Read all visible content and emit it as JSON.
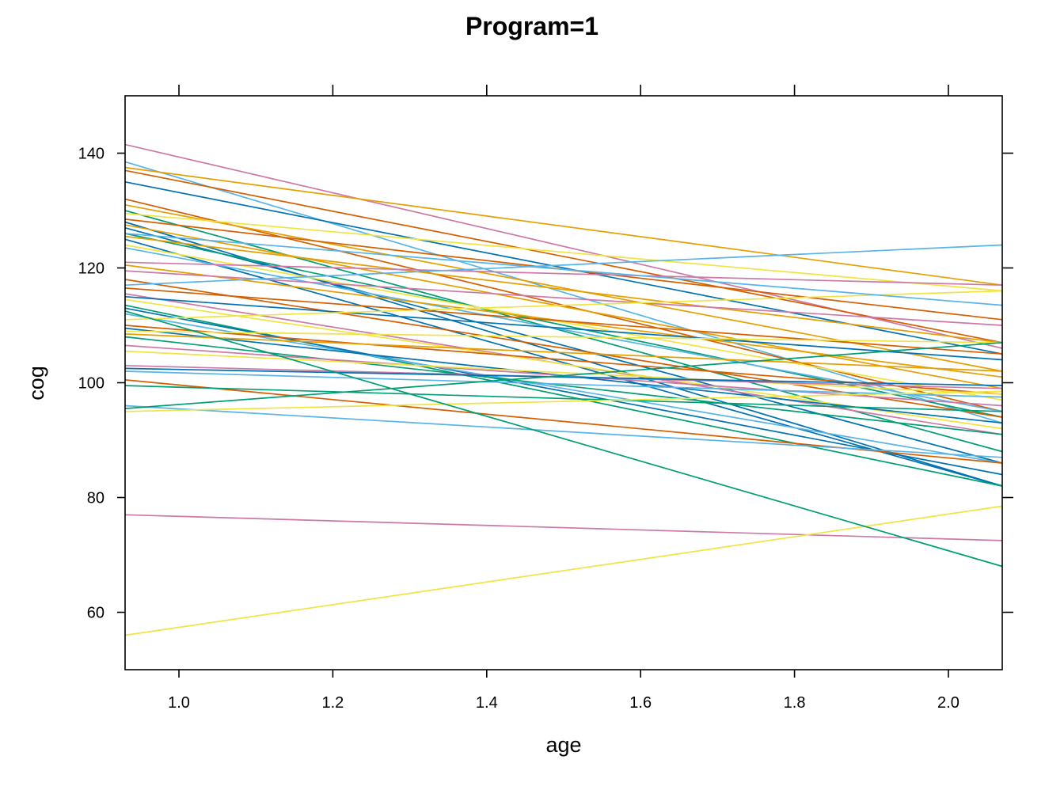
{
  "chart_data": {
    "type": "line",
    "title": "Program=1",
    "xlabel": "age",
    "ylabel": "cog",
    "xlim": [
      0.93,
      2.07
    ],
    "ylim": [
      50,
      150
    ],
    "xticks": [
      1.0,
      1.2,
      1.4,
      1.6,
      1.8,
      2.0
    ],
    "xtick_labels": [
      "1.0",
      "1.2",
      "1.4",
      "1.6",
      "1.8",
      "2.0"
    ],
    "yticks": [
      60,
      80,
      100,
      120,
      140
    ],
    "ytick_labels": [
      "60",
      "80",
      "100",
      "120",
      "140"
    ],
    "grid": false,
    "legend": "none",
    "palette": [
      "#56B4E9",
      "#E69F00",
      "#009E73",
      "#F0E442",
      "#0072B2",
      "#D55E00",
      "#CC79A7"
    ],
    "series": [
      {
        "x": [
          0.93,
          2.07
        ],
        "y": [
          141.5,
          106.0
        ],
        "color": "#CC79A7"
      },
      {
        "x": [
          0.93,
          2.07
        ],
        "y": [
          138.5,
          93.0
        ],
        "color": "#56B4E9"
      },
      {
        "x": [
          0.93,
          2.07
        ],
        "y": [
          137.5,
          117.0
        ],
        "color": "#E69F00"
      },
      {
        "x": [
          0.93,
          2.07
        ],
        "y": [
          137.0,
          107.0
        ],
        "color": "#D55E00"
      },
      {
        "x": [
          0.93,
          2.07
        ],
        "y": [
          135.0,
          105.0
        ],
        "color": "#0072B2"
      },
      {
        "x": [
          0.93,
          2.07
        ],
        "y": [
          132.0,
          95.0
        ],
        "color": "#D55E00"
      },
      {
        "x": [
          0.93,
          2.07
        ],
        "y": [
          131.0,
          102.0
        ],
        "color": "#E69F00"
      },
      {
        "x": [
          0.93,
          2.07
        ],
        "y": [
          130.0,
          88.0
        ],
        "color": "#009E73"
      },
      {
        "x": [
          0.93,
          2.07
        ],
        "y": [
          129.5,
          116.0
        ],
        "color": "#F0E442"
      },
      {
        "x": [
          0.93,
          2.07
        ],
        "y": [
          128.5,
          111.0
        ],
        "color": "#D55E00"
      },
      {
        "x": [
          0.93,
          2.07
        ],
        "y": [
          128.0,
          82.0
        ],
        "color": "#0072B2"
      },
      {
        "x": [
          0.93,
          2.07
        ],
        "y": [
          127.5,
          99.0
        ],
        "color": "#E69F00"
      },
      {
        "x": [
          0.93,
          2.07
        ],
        "y": [
          127.0,
          86.0
        ],
        "color": "#0072B2"
      },
      {
        "x": [
          0.93,
          2.07
        ],
        "y": [
          126.0,
          94.0
        ],
        "color": "#009E73"
      },
      {
        "x": [
          0.93,
          2.07
        ],
        "y": [
          125.5,
          107.0
        ],
        "color": "#E69F00"
      },
      {
        "x": [
          0.93,
          2.07
        ],
        "y": [
          125.0,
          82.0
        ],
        "color": "#0072B2"
      },
      {
        "x": [
          0.93,
          2.07
        ],
        "y": [
          124.0,
          97.0
        ],
        "color": "#F0E442"
      },
      {
        "x": [
          0.93,
          2.07
        ],
        "y": [
          123.5,
          95.0
        ],
        "color": "#56B4E9"
      },
      {
        "x": [
          0.93,
          2.07
        ],
        "y": [
          121.0,
          117.0
        ],
        "color": "#CC79A7"
      },
      {
        "x": [
          0.93,
          2.07
        ],
        "y": [
          120.5,
          101.0
        ],
        "color": "#E69F00"
      },
      {
        "x": [
          0.93,
          2.07
        ],
        "y": [
          119.5,
          110.0
        ],
        "color": "#CC79A7"
      },
      {
        "x": [
          0.93,
          2.07
        ],
        "y": [
          118.0,
          94.0
        ],
        "color": "#D55E00"
      },
      {
        "x": [
          0.93,
          2.07
        ],
        "y": [
          117.0,
          124.0
        ],
        "color": "#56B4E9"
      },
      {
        "x": [
          0.93,
          2.07
        ],
        "y": [
          116.5,
          105.0
        ],
        "color": "#D55E00"
      },
      {
        "x": [
          0.93,
          2.07
        ],
        "y": [
          115.5,
          91.0
        ],
        "color": "#CC79A7"
      },
      {
        "x": [
          0.93,
          2.07
        ],
        "y": [
          115.0,
          104.0
        ],
        "color": "#0072B2"
      },
      {
        "x": [
          0.93,
          2.07
        ],
        "y": [
          114.5,
          92.0
        ],
        "color": "#F0E442"
      },
      {
        "x": [
          0.93,
          2.07
        ],
        "y": [
          113.5,
          82.0
        ],
        "color": "#009E73"
      },
      {
        "x": [
          0.93,
          2.07
        ],
        "y": [
          113.0,
          84.0
        ],
        "color": "#0072B2"
      },
      {
        "x": [
          0.93,
          2.07
        ],
        "y": [
          112.0,
          86.0
        ],
        "color": "#56B4E9"
      },
      {
        "x": [
          0.93,
          2.07
        ],
        "y": [
          111.0,
          116.0
        ],
        "color": "#F0E442"
      },
      {
        "x": [
          0.93,
          2.07
        ],
        "y": [
          110.0,
          98.0
        ],
        "color": "#D55E00"
      },
      {
        "x": [
          0.93,
          2.07
        ],
        "y": [
          109.5,
          93.0
        ],
        "color": "#0072B2"
      },
      {
        "x": [
          0.93,
          2.07
        ],
        "y": [
          109.0,
          107.0
        ],
        "color": "#F0E442"
      },
      {
        "x": [
          0.93,
          2.07
        ],
        "y": [
          108.5,
          102.0
        ],
        "color": "#E69F00"
      },
      {
        "x": [
          0.93,
          2.07
        ],
        "y": [
          108.0,
          91.0
        ],
        "color": "#009E73"
      },
      {
        "x": [
          0.93,
          2.07
        ],
        "y": [
          106.5,
          96.0
        ],
        "color": "#CC79A7"
      },
      {
        "x": [
          0.93,
          2.07
        ],
        "y": [
          105.5,
          98.0
        ],
        "color": "#F0E442"
      },
      {
        "x": [
          0.93,
          2.07
        ],
        "y": [
          103.0,
          99.0
        ],
        "color": "#CC79A7"
      },
      {
        "x": [
          0.93,
          2.07
        ],
        "y": [
          102.5,
          99.5
        ],
        "color": "#0072B2"
      },
      {
        "x": [
          0.93,
          2.07
        ],
        "y": [
          102.0,
          97.5
        ],
        "color": "#56B4E9"
      },
      {
        "x": [
          0.93,
          2.07
        ],
        "y": [
          100.5,
          86.0
        ],
        "color": "#D55E00"
      },
      {
        "x": [
          0.93,
          2.07
        ],
        "y": [
          99.5,
          95.0
        ],
        "color": "#009E73"
      },
      {
        "x": [
          0.93,
          2.07
        ],
        "y": [
          96.0,
          87.0
        ],
        "color": "#56B4E9"
      },
      {
        "x": [
          0.93,
          2.07
        ],
        "y": [
          95.5,
          107.0
        ],
        "color": "#009E73"
      },
      {
        "x": [
          0.93,
          2.07
        ],
        "y": [
          95.0,
          98.5
        ],
        "color": "#F0E442"
      },
      {
        "x": [
          0.93,
          2.07
        ],
        "y": [
          77.0,
          72.5
        ],
        "color": "#CC79A7"
      },
      {
        "x": [
          0.93,
          2.07
        ],
        "y": [
          56.0,
          78.5
        ],
        "color": "#F0E442"
      },
      {
        "x": [
          0.93,
          2.07
        ],
        "y": [
          112.5,
          68.0
        ],
        "color": "#009E73"
      },
      {
        "x": [
          0.93,
          2.07
        ],
        "y": [
          126.0,
          113.5
        ],
        "color": "#56B4E9"
      }
    ]
  }
}
